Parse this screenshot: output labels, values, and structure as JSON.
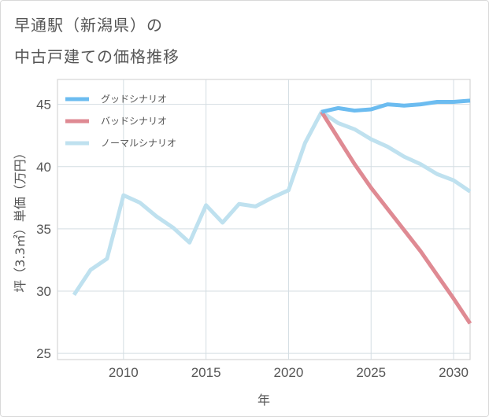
{
  "title": {
    "line1": "早通駅（新潟県）の",
    "line2": "中古戸建ての価格推移"
  },
  "chart_data": {
    "type": "line",
    "xlabel": "年",
    "ylabel": "坪（3.3㎡）単価（万円）",
    "xlim": [
      2006,
      2031
    ],
    "ylim": [
      24.5,
      47
    ],
    "xticks": [
      2010,
      2015,
      2020,
      2025,
      2030
    ],
    "yticks": [
      25,
      30,
      35,
      40,
      45
    ],
    "grid": true,
    "legend_position": "top-left",
    "series": [
      {
        "name": "グッドシナリオ",
        "color": "#6cbcf0",
        "x": [
          2022,
          2023,
          2024,
          2025,
          2026,
          2027,
          2028,
          2029,
          2030,
          2031
        ],
        "y": [
          44.4,
          44.7,
          44.5,
          44.6,
          45.0,
          44.9,
          45.0,
          45.2,
          45.2,
          45.3
        ]
      },
      {
        "name": "バッドシナリオ",
        "color": "#df8a93",
        "x": [
          2022,
          2023,
          2024,
          2025,
          2026,
          2027,
          2028,
          2029,
          2030,
          2031
        ],
        "y": [
          44.4,
          42.3,
          40.2,
          38.3,
          36.6,
          34.9,
          33.2,
          31.3,
          29.4,
          27.4
        ]
      },
      {
        "name": "ノーマルシナリオ",
        "color": "#bfe1ef",
        "x": [
          2007,
          2008,
          2009,
          2010,
          2011,
          2012,
          2013,
          2014,
          2015,
          2016,
          2017,
          2018,
          2019,
          2020,
          2021,
          2022,
          2023,
          2024,
          2025,
          2026,
          2027,
          2028,
          2029,
          2030,
          2031
        ],
        "y": [
          29.7,
          31.7,
          32.6,
          37.7,
          37.1,
          36.0,
          35.1,
          33.9,
          36.9,
          35.5,
          37.0,
          36.8,
          37.5,
          38.1,
          41.9,
          44.4,
          43.5,
          43.0,
          42.2,
          41.6,
          40.8,
          40.2,
          39.4,
          38.9,
          38.0
        ]
      }
    ]
  }
}
